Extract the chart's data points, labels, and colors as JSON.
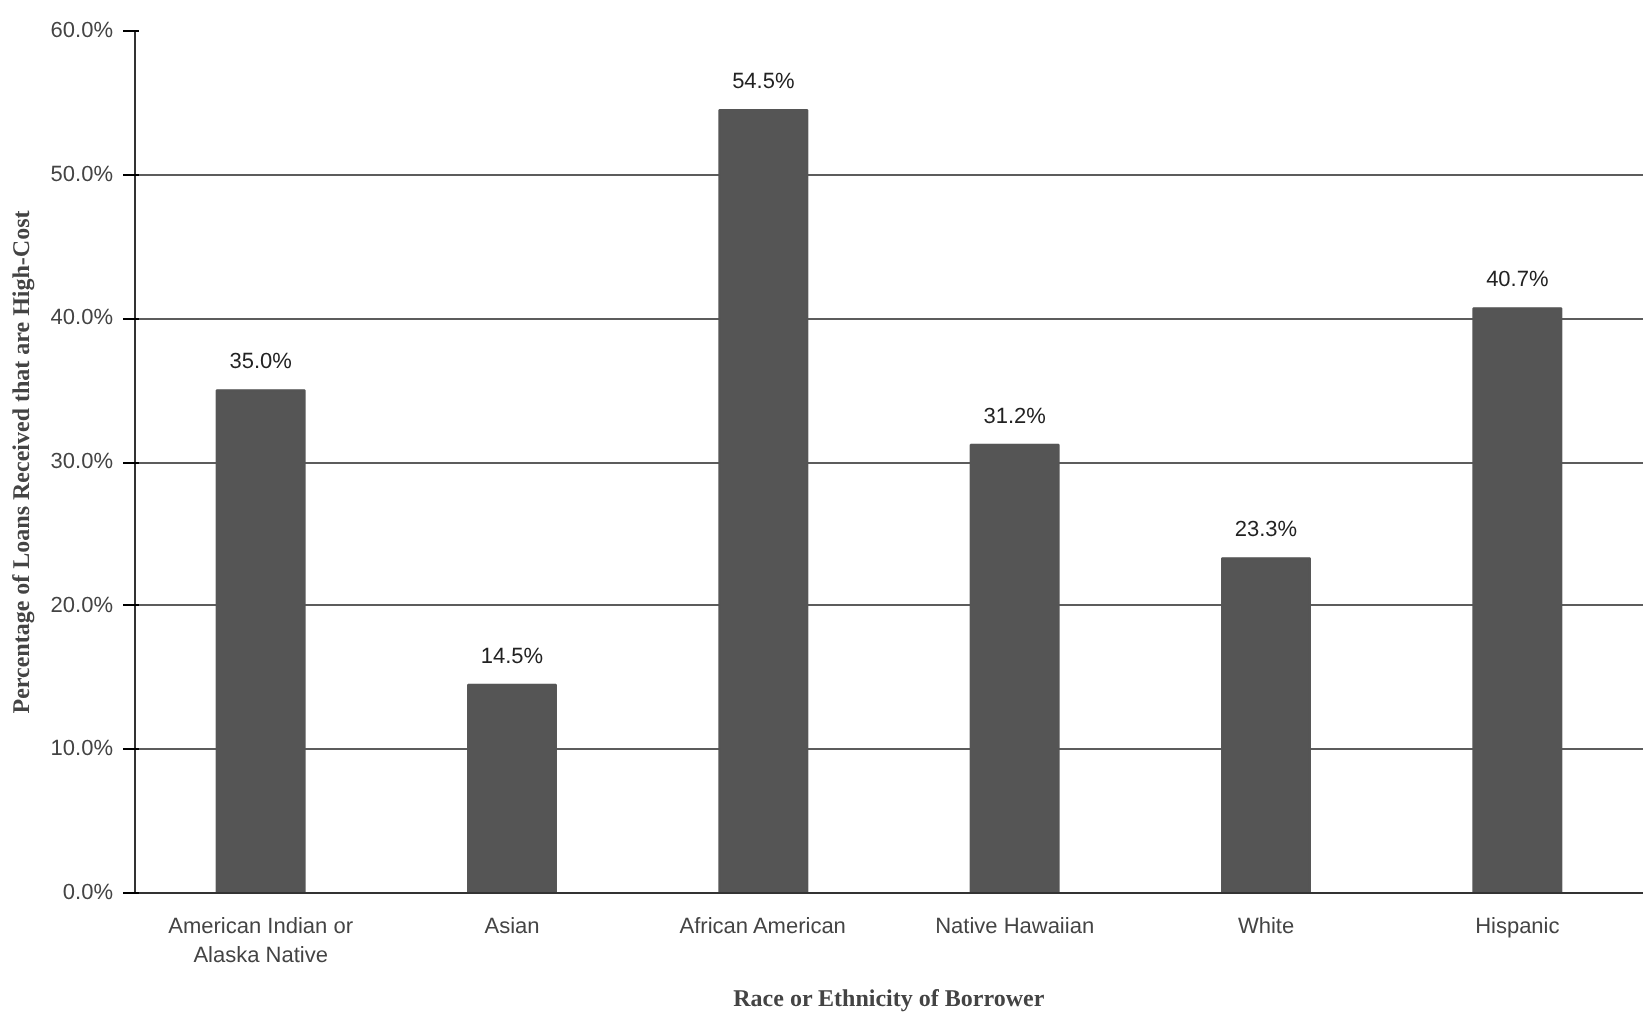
{
  "chart_data": {
    "type": "bar",
    "xlabel": "Race or Ethnicity of Borrower",
    "ylabel": "Percentage of Loans Received that are High-Cost",
    "categories": [
      "American Indian or Alaska Native",
      "Asian",
      "African American",
      "Native Hawaiian",
      "White",
      "Hispanic"
    ],
    "values": [
      35.0,
      14.5,
      54.5,
      31.2,
      23.3,
      40.7
    ],
    "value_labels": [
      "35.0%",
      "14.5%",
      "54.5%",
      "31.2%",
      "23.3%",
      "40.7%"
    ],
    "color": "#555555",
    "ylim": [
      0,
      60
    ],
    "yticks": [
      {
        "value": 0,
        "label": "0.0%"
      },
      {
        "value": 10,
        "label": "10.0%"
      },
      {
        "value": 20,
        "label": "20.0%"
      },
      {
        "value": 30,
        "label": "30.0%"
      },
      {
        "value": 40,
        "label": "40.0%"
      },
      {
        "value": 50,
        "label": "50.0%"
      },
      {
        "value": 60,
        "label": "60.0%"
      }
    ],
    "grid": "y"
  }
}
